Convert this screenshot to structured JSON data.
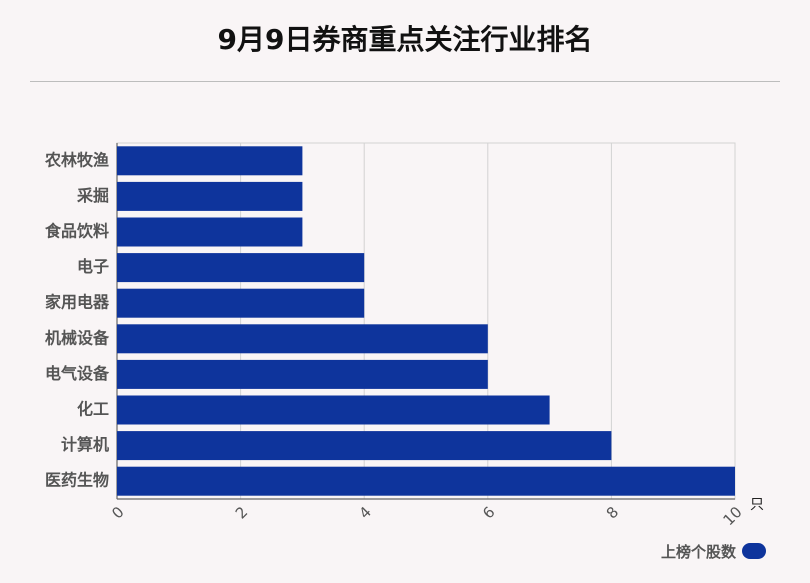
{
  "title": "9月9日券商重点关注行业排名",
  "chart_data": {
    "type": "bar",
    "orientation": "horizontal",
    "categories": [
      "农林牧渔",
      "采掘",
      "食品饮料",
      "电子",
      "家用电器",
      "机械设备",
      "电气设备",
      "化工",
      "计算机",
      "医药生物"
    ],
    "series": [
      {
        "name": "上榜个股数",
        "values": [
          3,
          3,
          3,
          4,
          4,
          6,
          6,
          7,
          8,
          10
        ]
      }
    ],
    "xlim": [
      0,
      10
    ],
    "xticks": [
      0,
      2,
      4,
      6,
      8,
      10
    ],
    "xunit": "只",
    "grid": true,
    "legend_position": "bottom-right",
    "bar_color": "#0e349c"
  }
}
